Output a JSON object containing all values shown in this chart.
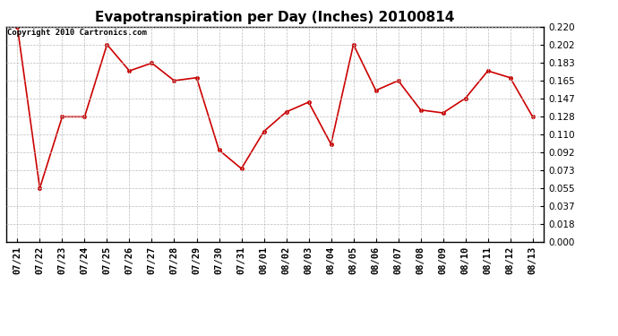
{
  "title": "Evapotranspiration per Day (Inches) 20100814",
  "copyright": "Copyright 2010 Cartronics.com",
  "x_labels": [
    "07/21",
    "07/22",
    "07/23",
    "07/24",
    "07/25",
    "07/26",
    "07/27",
    "07/28",
    "07/29",
    "07/30",
    "07/31",
    "08/01",
    "08/02",
    "08/03",
    "08/04",
    "08/05",
    "08/06",
    "08/07",
    "08/08",
    "08/09",
    "08/10",
    "08/11",
    "08/12",
    "08/13"
  ],
  "y_values": [
    0.22,
    0.055,
    0.128,
    0.128,
    0.202,
    0.175,
    0.183,
    0.165,
    0.168,
    0.094,
    0.075,
    0.113,
    0.133,
    0.143,
    0.1,
    0.202,
    0.155,
    0.165,
    0.135,
    0.132,
    0.147,
    0.175,
    0.168,
    0.128
  ],
  "ylim": [
    0.0,
    0.22
  ],
  "yticks": [
    0.0,
    0.018,
    0.037,
    0.055,
    0.073,
    0.092,
    0.11,
    0.128,
    0.147,
    0.165,
    0.183,
    0.202,
    0.22
  ],
  "line_color": "#cc0000",
  "marker": "o",
  "marker_size": 3,
  "marker_color": "#cc0000",
  "background_color": "#ffffff",
  "grid_color": "#bbbbbb",
  "title_fontsize": 11,
  "tick_fontsize": 7.5,
  "copyright_fontsize": 6.5
}
